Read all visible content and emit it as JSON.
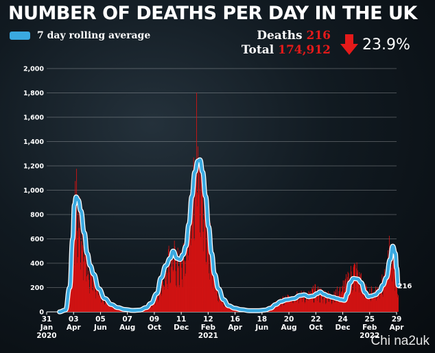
{
  "header": {
    "title": "NUMBER OF DEATHS PER DAY IN THE UK",
    "legend_label": "7 day rolling average",
    "deaths_label": "Deaths",
    "deaths_value": "216",
    "total_label": "Total",
    "total_value": "174,912",
    "change": "23.9%",
    "change_direction": "down",
    "watermark": "Chi na2uk"
  },
  "colors": {
    "bars": "#d11313",
    "line": "#3aa9e0",
    "text": "#ffffff",
    "accent_red": "#e51a1a"
  },
  "chart_data": {
    "type": "bar",
    "title": "NUMBER OF DEATHS PER DAY IN THE UK",
    "ylim": [
      0,
      2000
    ],
    "y_ticks": [
      "0",
      "200",
      "400",
      "600",
      "800",
      "1,000",
      "1,200",
      "1,400",
      "1,600",
      "1,800",
      "2,000"
    ],
    "x_ticks": [
      {
        "day": "31",
        "month": "Jan",
        "year": "2020",
        "date": "2020-01-31"
      },
      {
        "day": "03",
        "month": "Apr",
        "year": "",
        "date": "2020-04-03"
      },
      {
        "day": "05",
        "month": "Jun",
        "year": "",
        "date": "2020-06-05"
      },
      {
        "day": "07",
        "month": "Aug",
        "year": "",
        "date": "2020-08-07"
      },
      {
        "day": "09",
        "month": "Oct",
        "year": "",
        "date": "2020-10-09"
      },
      {
        "day": "11",
        "month": "Dec",
        "year": "",
        "date": "2020-12-11"
      },
      {
        "day": "12",
        "month": "Feb",
        "year": "2021",
        "date": "2021-02-12"
      },
      {
        "day": "16",
        "month": "Apr",
        "year": "",
        "date": "2021-04-16"
      },
      {
        "day": "18",
        "month": "Jun",
        "year": "",
        "date": "2021-06-18"
      },
      {
        "day": "20",
        "month": "Aug",
        "year": "",
        "date": "2021-08-20"
      },
      {
        "day": "22",
        "month": "Oct",
        "year": "",
        "date": "2021-10-22"
      },
      {
        "day": "24",
        "month": "Dec",
        "year": "",
        "date": "2021-12-24"
      },
      {
        "day": "25",
        "month": "Feb",
        "year": "2022",
        "date": "2022-02-25"
      },
      {
        "day": "29",
        "month": "Apr",
        "year": "",
        "date": "2022-04-29"
      }
    ],
    "grid": true,
    "series": [
      {
        "name": "7 day rolling average",
        "type": "line",
        "points": [
          [
            "2020-03-01",
            0
          ],
          [
            "2020-03-15",
            15
          ],
          [
            "2020-03-25",
            200
          ],
          [
            "2020-04-01",
            600
          ],
          [
            "2020-04-05",
            880
          ],
          [
            "2020-04-09",
            945
          ],
          [
            "2020-04-14",
            920
          ],
          [
            "2020-04-20",
            830
          ],
          [
            "2020-04-28",
            650
          ],
          [
            "2020-05-05",
            480
          ],
          [
            "2020-05-12",
            380
          ],
          [
            "2020-05-20",
            310
          ],
          [
            "2020-06-01",
            190
          ],
          [
            "2020-06-15",
            110
          ],
          [
            "2020-07-01",
            60
          ],
          [
            "2020-07-15",
            35
          ],
          [
            "2020-08-01",
            20
          ],
          [
            "2020-08-20",
            12
          ],
          [
            "2020-09-05",
            15
          ],
          [
            "2020-09-20",
            35
          ],
          [
            "2020-10-01",
            70
          ],
          [
            "2020-10-15",
            150
          ],
          [
            "2020-10-25",
            280
          ],
          [
            "2020-11-05",
            380
          ],
          [
            "2020-11-15",
            440
          ],
          [
            "2020-11-22",
            500
          ],
          [
            "2020-12-01",
            440
          ],
          [
            "2020-12-08",
            430
          ],
          [
            "2020-12-15",
            470
          ],
          [
            "2020-12-22",
            540
          ],
          [
            "2020-12-29",
            720
          ],
          [
            "2021-01-05",
            950
          ],
          [
            "2021-01-12",
            1150
          ],
          [
            "2021-01-19",
            1240
          ],
          [
            "2021-01-24",
            1250
          ],
          [
            "2021-01-30",
            1150
          ],
          [
            "2021-02-06",
            950
          ],
          [
            "2021-02-13",
            700
          ],
          [
            "2021-02-20",
            480
          ],
          [
            "2021-02-27",
            310
          ],
          [
            "2021-03-08",
            190
          ],
          [
            "2021-03-20",
            100
          ],
          [
            "2021-04-01",
            50
          ],
          [
            "2021-04-15",
            30
          ],
          [
            "2021-05-01",
            18
          ],
          [
            "2021-05-20",
            10
          ],
          [
            "2021-06-10",
            10
          ],
          [
            "2021-06-25",
            15
          ],
          [
            "2021-07-08",
            30
          ],
          [
            "2021-07-20",
            60
          ],
          [
            "2021-08-01",
            85
          ],
          [
            "2021-08-15",
            100
          ],
          [
            "2021-09-01",
            110
          ],
          [
            "2021-09-15",
            135
          ],
          [
            "2021-09-25",
            140
          ],
          [
            "2021-10-05",
            125
          ],
          [
            "2021-10-15",
            130
          ],
          [
            "2021-10-25",
            150
          ],
          [
            "2021-11-01",
            165
          ],
          [
            "2021-11-10",
            145
          ],
          [
            "2021-11-20",
            130
          ],
          [
            "2021-12-01",
            120
          ],
          [
            "2021-12-10",
            110
          ],
          [
            "2021-12-20",
            100
          ],
          [
            "2021-12-28",
            95
          ],
          [
            "2022-01-04",
            150
          ],
          [
            "2022-01-10",
            240
          ],
          [
            "2022-01-18",
            275
          ],
          [
            "2022-01-28",
            270
          ],
          [
            "2022-02-05",
            240
          ],
          [
            "2022-02-14",
            160
          ],
          [
            "2022-02-22",
            125
          ],
          [
            "2022-03-01",
            130
          ],
          [
            "2022-03-10",
            140
          ],
          [
            "2022-03-20",
            170
          ],
          [
            "2022-03-28",
            220
          ],
          [
            "2022-04-05",
            280
          ],
          [
            "2022-04-14",
            430
          ],
          [
            "2022-04-20",
            540
          ],
          [
            "2022-04-26",
            480
          ],
          [
            "2022-04-29",
            360
          ],
          [
            "2022-05-03",
            216
          ]
        ]
      },
      {
        "name": "Deaths",
        "type": "bar",
        "note_points": [
          [
            "2020-03-15",
            20
          ],
          [
            "2020-03-25",
            250
          ],
          [
            "2020-04-01",
            700
          ],
          [
            "2020-04-05",
            1110
          ],
          [
            "2020-04-08",
            1080
          ],
          [
            "2020-04-10",
            1200
          ],
          [
            "2020-04-12",
            900
          ],
          [
            "2020-04-15",
            1020
          ],
          [
            "2020-04-20",
            850
          ],
          [
            "2020-04-25",
            760
          ],
          [
            "2020-05-01",
            620
          ],
          [
            "2020-05-08",
            450
          ],
          [
            "2020-05-15",
            420
          ],
          [
            "2020-05-22",
            330
          ],
          [
            "2020-06-01",
            240
          ],
          [
            "2020-06-15",
            130
          ],
          [
            "2020-07-01",
            80
          ],
          [
            "2020-07-20",
            40
          ],
          [
            "2020-08-15",
            15
          ],
          [
            "2020-09-15",
            25
          ],
          [
            "2020-10-01",
            80
          ],
          [
            "2020-10-15",
            170
          ],
          [
            "2020-10-25",
            320
          ],
          [
            "2020-11-05",
            430
          ],
          [
            "2020-11-10",
            590
          ],
          [
            "2020-11-18",
            560
          ],
          [
            "2020-11-25",
            600
          ],
          [
            "2020-12-01",
            540
          ],
          [
            "2020-12-10",
            520
          ],
          [
            "2020-12-20",
            610
          ],
          [
            "2020-12-29",
            980
          ],
          [
            "2021-01-05",
            1040
          ],
          [
            "2021-01-12",
            1560
          ],
          [
            "2021-01-16",
            1820
          ],
          [
            "2021-01-20",
            1680
          ],
          [
            "2021-01-26",
            1530
          ],
          [
            "2021-02-02",
            1380
          ],
          [
            "2021-02-09",
            1060
          ],
          [
            "2021-02-16",
            760
          ],
          [
            "2021-02-23",
            550
          ],
          [
            "2021-03-05",
            250
          ],
          [
            "2021-03-20",
            110
          ],
          [
            "2021-04-10",
            40
          ],
          [
            "2021-05-15",
            12
          ],
          [
            "2021-06-20",
            20
          ],
          [
            "2021-07-20",
            90
          ],
          [
            "2021-08-15",
            150
          ],
          [
            "2021-09-10",
            200
          ],
          [
            "2021-10-01",
            170
          ],
          [
            "2021-10-20",
            230
          ],
          [
            "2021-11-01",
            210
          ],
          [
            "2021-12-01",
            160
          ],
          [
            "2022-01-05",
            340
          ],
          [
            "2022-01-15",
            430
          ],
          [
            "2022-01-25",
            460
          ],
          [
            "2022-02-05",
            330
          ],
          [
            "2022-02-20",
            200
          ],
          [
            "2022-03-15",
            240
          ],
          [
            "2022-04-05",
            380
          ],
          [
            "2022-04-12",
            650
          ],
          [
            "2022-04-18",
            640
          ],
          [
            "2022-04-24",
            560
          ],
          [
            "2022-05-03",
            216
          ]
        ]
      }
    ],
    "annotation": {
      "label": "216",
      "date": "2022-05-03",
      "value": 216
    }
  }
}
